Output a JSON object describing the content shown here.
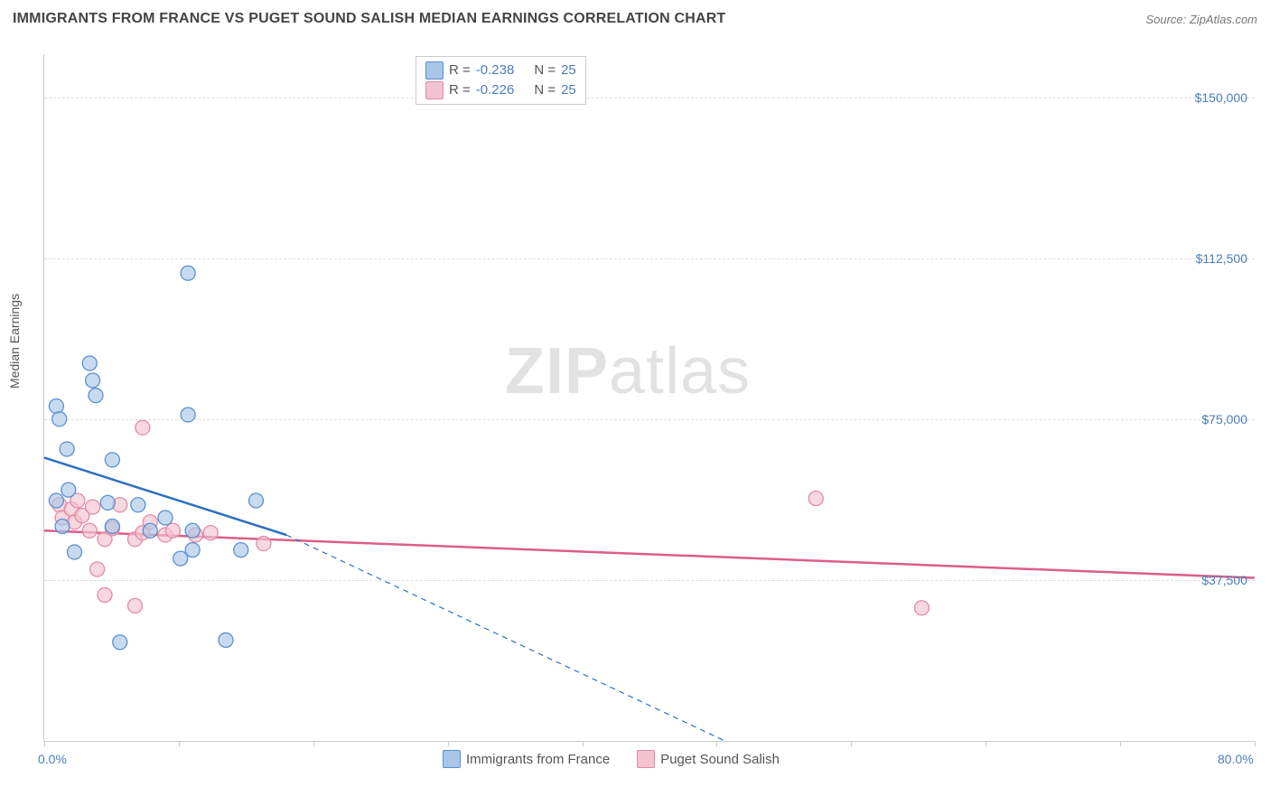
{
  "title": "IMMIGRANTS FROM FRANCE VS PUGET SOUND SALISH MEDIAN EARNINGS CORRELATION CHART",
  "source": "Source: ZipAtlas.com",
  "ylabel": "Median Earnings",
  "watermark_a": "ZIP",
  "watermark_b": "atlas",
  "xaxis": {
    "min_label": "0.0%",
    "max_label": "80.0%",
    "min": 0,
    "max": 80,
    "ticks": [
      0,
      8.9,
      17.8,
      26.7,
      35.6,
      44.4,
      53.3,
      62.2,
      71.1,
      80
    ]
  },
  "yaxis": {
    "min": 0,
    "max": 160000,
    "grid_values": [
      37500,
      75000,
      112500,
      150000
    ],
    "grid_labels": [
      "$37,500",
      "$75,000",
      "$112,500",
      "$150,000"
    ]
  },
  "colors": {
    "blue_fill": "#a9c6e8",
    "blue_stroke": "#5b8fd0",
    "blue_line": "#2f6fc1",
    "pink_fill": "#f3c3d0",
    "pink_stroke": "#e48aa4",
    "pink_line": "#db5e87",
    "grid": "#dddddd",
    "axis": "#cccccc",
    "tick_text": "#4a7ebb"
  },
  "legend_top": [
    {
      "swatch": "blue",
      "r_label": "R =",
      "r_value": "-0.238",
      "n_label": "N =",
      "n_value": "25"
    },
    {
      "swatch": "pink",
      "r_label": "R =",
      "r_value": "-0.226",
      "n_label": "N =",
      "n_value": "25"
    }
  ],
  "legend_bottom": [
    {
      "swatch": "blue",
      "label": "Immigrants from France"
    },
    {
      "swatch": "pink",
      "label": "Puget Sound Salish"
    }
  ],
  "series": {
    "blue": {
      "points": [
        [
          0.8,
          78000
        ],
        [
          1.0,
          75000
        ],
        [
          3.0,
          88000
        ],
        [
          3.2,
          84000
        ],
        [
          3.4,
          80500
        ],
        [
          9.5,
          109000
        ],
        [
          1.5,
          68000
        ],
        [
          4.5,
          65500
        ],
        [
          9.5,
          76000
        ],
        [
          0.8,
          56000
        ],
        [
          1.6,
          58500
        ],
        [
          4.2,
          55500
        ],
        [
          6.2,
          55000
        ],
        [
          8.0,
          52000
        ],
        [
          1.2,
          50000
        ],
        [
          4.5,
          50000
        ],
        [
          7.0,
          49000
        ],
        [
          9.8,
          49000
        ],
        [
          14.0,
          56000
        ],
        [
          9.8,
          44500
        ],
        [
          13.0,
          44500
        ],
        [
          2.0,
          44000
        ],
        [
          9.0,
          42500
        ],
        [
          5.0,
          23000
        ],
        [
          12.0,
          23500
        ]
      ],
      "trend": {
        "solid": [
          [
            0,
            66000
          ],
          [
            16,
            48000
          ]
        ],
        "dashed": [
          [
            16,
            48000
          ],
          [
            45,
            0
          ]
        ]
      }
    },
    "pink": {
      "points": [
        [
          6.5,
          73000
        ],
        [
          1.0,
          55000
        ],
        [
          1.2,
          52000
        ],
        [
          1.8,
          54000
        ],
        [
          2.0,
          51000
        ],
        [
          2.2,
          56000
        ],
        [
          2.5,
          52500
        ],
        [
          3.0,
          49000
        ],
        [
          3.2,
          54500
        ],
        [
          4.0,
          47000
        ],
        [
          4.5,
          49500
        ],
        [
          5.0,
          55000
        ],
        [
          6.0,
          47000
        ],
        [
          6.5,
          48500
        ],
        [
          7.0,
          51000
        ],
        [
          8.0,
          48000
        ],
        [
          8.5,
          49000
        ],
        [
          10.0,
          48000
        ],
        [
          11.0,
          48500
        ],
        [
          14.5,
          46000
        ],
        [
          3.5,
          40000
        ],
        [
          4.0,
          34000
        ],
        [
          6.0,
          31500
        ],
        [
          51.0,
          56500
        ],
        [
          58.0,
          31000
        ]
      ],
      "trend": {
        "solid": [
          [
            0,
            49000
          ],
          [
            80,
            38000
          ]
        ]
      }
    }
  },
  "marker_radius": 8,
  "marker_opacity": 0.65,
  "line_width_solid": 2.5,
  "line_width_dashed": 1.2
}
